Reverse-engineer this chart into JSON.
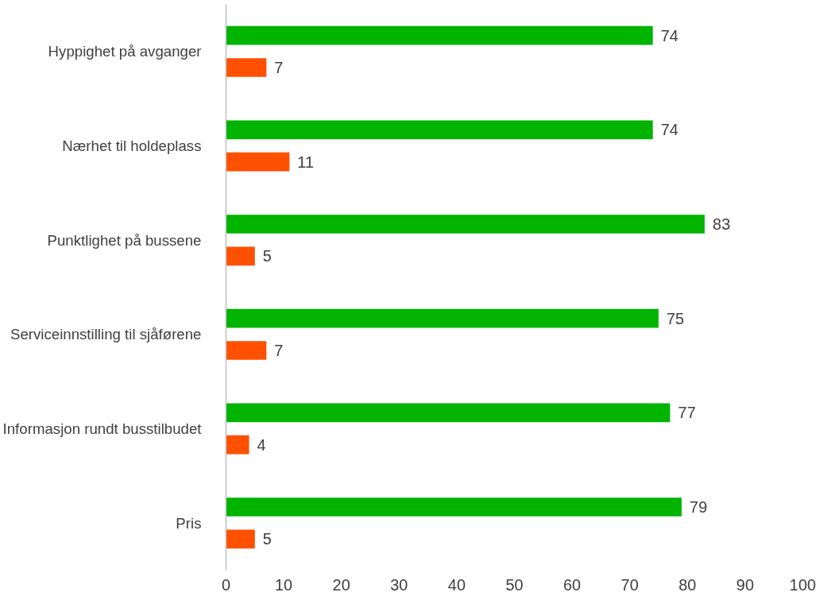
{
  "chart_data": {
    "type": "bar",
    "orientation": "horizontal",
    "categories": [
      "Hyppighet på avganger",
      "Nærhet til holdeplass",
      "Punktlighet på bussene",
      "Serviceinnstilling til sjåførene",
      "Informasjon rundt busstilbudet",
      "Pris"
    ],
    "series": [
      {
        "color": "#00b400",
        "values": [
          74,
          74,
          83,
          75,
          77,
          79
        ]
      },
      {
        "color": "#ff5000",
        "values": [
          7,
          11,
          5,
          7,
          4,
          5
        ]
      }
    ],
    "xlim": [
      0,
      100
    ],
    "xticks": [
      0,
      10,
      20,
      30,
      40,
      50,
      60,
      70,
      80,
      90,
      100
    ],
    "data_labels": true,
    "grid": false
  }
}
